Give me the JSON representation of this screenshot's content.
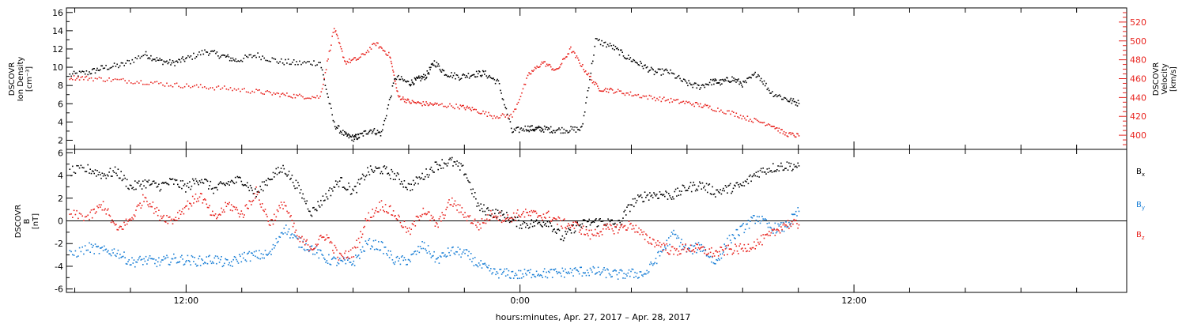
{
  "colors": {
    "axis": "#000000",
    "black_series": "#000000",
    "red_series": "#e8231e",
    "blue_series": "#1a7fd6"
  },
  "x_axis": {
    "title": "hours:minutes, Apr. 27, 2017 – Apr. 28, 2017",
    "tick_labels": [
      {
        "hour": 12,
        "label": "12:00"
      },
      {
        "hour": 24,
        "label": "0:00"
      },
      {
        "hour": 36,
        "label": "12:00"
      }
    ],
    "range_hours": [
      7.7,
      45.8
    ],
    "minor_tick_step_hours": 2
  },
  "chart_data": [
    {
      "type": "scatter",
      "panel": "plasma",
      "x_unit": "hours from Apr. 27, 2017 00:00",
      "left_axis": {
        "label_lines": [
          "DSCOVR",
          "Ion Density",
          "[cm⁻³]"
        ],
        "range": [
          1,
          16.5
        ],
        "tick_values": [
          2,
          4,
          6,
          8,
          10,
          12,
          14,
          16
        ],
        "tick_labels": [
          "2",
          "4",
          "6",
          "8",
          "10",
          "12",
          "14",
          "16"
        ]
      },
      "right_axis": {
        "label_lines": [
          "DSCOVR",
          "Velocity",
          "[km/s]"
        ],
        "range": [
          385,
          535
        ],
        "tick_values": [
          400,
          420,
          440,
          460,
          480,
          500,
          520
        ],
        "tick_labels": [
          "400",
          "420",
          "440",
          "460",
          "480",
          "500",
          "520"
        ]
      },
      "series": [
        {
          "color": "black",
          "axis": "left",
          "x": [
            7.8,
            8.5,
            9.0,
            9.7,
            10.5,
            11.0,
            11.5,
            12.0,
            12.7,
            13.3,
            13.8,
            14.5,
            15.3,
            16.0,
            16.8,
            17.3,
            17.7,
            18.0,
            18.2,
            18.6,
            19.0,
            19.5,
            20.0,
            20.3,
            20.6,
            20.9,
            21.3,
            21.8,
            22.3,
            22.7,
            23.2,
            23.7,
            24.2,
            24.5,
            24.8,
            25.2,
            25.7,
            26.2,
            26.7,
            27.3,
            27.8,
            28.3,
            28.8,
            29.3,
            29.9,
            30.4,
            30.9,
            31.2,
            31.6,
            32.0,
            32.5,
            33.0,
            33.6,
            34.0
          ],
          "y": [
            9.2,
            9.5,
            10.0,
            10.3,
            11.5,
            10.8,
            10.5,
            11.0,
            11.8,
            11.3,
            10.8,
            11.4,
            10.7,
            10.5,
            10.6,
            3.8,
            2.6,
            2.3,
            2.5,
            3.2,
            2.8,
            9.0,
            8.3,
            8.7,
            9.1,
            10.6,
            9.4,
            9.0,
            9.3,
            9.4,
            8.4,
            3.0,
            3.4,
            3.3,
            3.3,
            3.2,
            3.2,
            3.3,
            13.0,
            12.3,
            11.2,
            10.4,
            9.5,
            9.6,
            8.4,
            7.9,
            8.5,
            8.4,
            8.8,
            8.2,
            9.4,
            7.3,
            6.5,
            6.1
          ]
        },
        {
          "color": "red",
          "axis": "right",
          "x": [
            7.8,
            8.5,
            9.5,
            10.5,
            11.5,
            12.5,
            13.5,
            14.5,
            15.3,
            16.0,
            16.8,
            17.3,
            17.7,
            18.2,
            18.8,
            19.3,
            19.6,
            20.0,
            20.5,
            21.0,
            21.8,
            22.3,
            23.0,
            23.7,
            24.3,
            24.8,
            25.3,
            25.8,
            26.3,
            26.8,
            27.3,
            28.0,
            28.8,
            29.5,
            30.2,
            30.8,
            31.6,
            32.3,
            33.0,
            33.5,
            34.0
          ],
          "y": [
            462,
            461,
            459,
            457,
            454,
            452,
            450,
            447,
            444,
            442,
            441,
            514,
            478,
            482,
            498,
            485,
            442,
            436,
            434,
            433,
            431,
            428,
            421,
            421,
            465,
            478,
            469,
            492,
            470,
            450,
            448,
            444,
            440,
            437,
            434,
            430,
            424,
            417,
            412,
            402,
            400
          ]
        }
      ]
    },
    {
      "type": "scatter",
      "panel": "magnetic_field",
      "x_unit": "hours from Apr. 27, 2017 00:00",
      "left_axis": {
        "label_lines": [
          "DSCOVR",
          "B",
          "[nT]"
        ],
        "range": [
          -6.3,
          6.3
        ],
        "tick_values": [
          -6,
          -4,
          -2,
          0,
          2,
          4,
          6
        ],
        "tick_labels": [
          "-6",
          "-4",
          "-2",
          "0",
          "2",
          "4",
          "6"
        ]
      },
      "zero_line": true,
      "series": [
        {
          "name": "Bx",
          "color": "black",
          "x": [
            7.8,
            8.5,
            9.0,
            9.5,
            10.0,
            10.5,
            11.0,
            11.5,
            12.0,
            12.5,
            13.0,
            13.5,
            14.0,
            14.5,
            15.0,
            15.5,
            16.0,
            16.5,
            17.0,
            17.5,
            18.0,
            18.5,
            19.0,
            19.5,
            20.0,
            20.5,
            21.0,
            21.5,
            22.0,
            22.5,
            23.0,
            23.5,
            24.0,
            24.5,
            25.0,
            25.5,
            26.0,
            26.5,
            27.0,
            27.5,
            28.0,
            28.5,
            29.0,
            29.5,
            30.0,
            30.5,
            31.0,
            31.5,
            32.0,
            32.5,
            33.0,
            33.5,
            34.0
          ],
          "y": [
            4.4,
            4.6,
            4.1,
            4.4,
            3.0,
            3.4,
            3.1,
            3.5,
            3.0,
            3.8,
            2.8,
            3.4,
            3.7,
            2.4,
            3.9,
            4.7,
            3.0,
            0.8,
            2.2,
            3.6,
            2.6,
            4.4,
            4.6,
            4.0,
            3.0,
            4.0,
            5.0,
            5.3,
            4.4,
            1.2,
            0.8,
            0.4,
            -0.2,
            -0.2,
            0.0,
            -1.5,
            -0.4,
            -0.1,
            0.0,
            -0.3,
            1.6,
            2.3,
            2.4,
            2.3,
            3.0,
            3.2,
            2.6,
            2.9,
            3.2,
            4.3,
            4.7,
            4.9,
            4.9
          ]
        },
        {
          "name": "By",
          "color": "blue",
          "x": [
            7.8,
            8.5,
            9.0,
            9.5,
            10.0,
            10.5,
            11.0,
            11.5,
            12.0,
            12.5,
            13.0,
            13.5,
            14.0,
            14.5,
            15.0,
            15.5,
            16.0,
            16.5,
            17.0,
            17.5,
            18.0,
            18.5,
            19.0,
            19.5,
            20.0,
            20.5,
            21.0,
            21.5,
            22.0,
            22.5,
            23.0,
            23.5,
            24.0,
            24.5,
            25.0,
            25.5,
            26.0,
            26.5,
            27.0,
            27.5,
            28.0,
            28.5,
            29.0,
            29.5,
            30.0,
            30.5,
            31.0,
            31.5,
            32.0,
            32.5,
            33.0,
            33.5,
            34.0
          ],
          "y": [
            -3.0,
            -2.3,
            -2.6,
            -2.7,
            -3.6,
            -3.4,
            -3.6,
            -3.3,
            -3.4,
            -3.5,
            -3.3,
            -3.8,
            -3.1,
            -3.0,
            -2.9,
            -0.5,
            -1.8,
            -2.4,
            -3.3,
            -3.6,
            -3.6,
            -1.9,
            -2.2,
            -3.5,
            -3.4,
            -2.1,
            -3.4,
            -2.6,
            -2.8,
            -3.8,
            -4.5,
            -4.6,
            -4.7,
            -4.5,
            -4.6,
            -4.5,
            -4.4,
            -4.4,
            -4.5,
            -4.7,
            -4.6,
            -4.6,
            -2.9,
            -1.1,
            -2.6,
            -2.2,
            -3.7,
            -1.6,
            -0.6,
            0.4,
            -0.6,
            -0.5,
            0.9
          ]
        },
        {
          "name": "Bz",
          "color": "red",
          "x": [
            7.8,
            8.5,
            9.0,
            9.5,
            10.0,
            10.5,
            11.0,
            11.5,
            12.0,
            12.5,
            13.0,
            13.5,
            14.0,
            14.5,
            15.0,
            15.5,
            16.0,
            16.5,
            17.0,
            17.5,
            18.0,
            18.5,
            19.0,
            19.5,
            20.0,
            20.5,
            21.0,
            21.5,
            22.0,
            22.5,
            23.0,
            23.5,
            24.0,
            24.5,
            25.0,
            25.5,
            26.0,
            26.5,
            27.0,
            27.5,
            28.0,
            28.5,
            29.0,
            29.5,
            30.0,
            30.5,
            31.0,
            31.5,
            32.0,
            32.5,
            33.0,
            33.5,
            34.0
          ],
          "y": [
            0.6,
            0.4,
            1.5,
            -0.8,
            0.2,
            2.2,
            0.6,
            0.1,
            1.4,
            2.3,
            0.2,
            1.5,
            0.6,
            2.6,
            -0.2,
            1.7,
            -1.5,
            -2.3,
            -1.2,
            -3.2,
            -2.7,
            0.3,
            1.5,
            0.6,
            -1.0,
            1.1,
            -0.4,
            1.8,
            0.6,
            -0.4,
            0.7,
            0.2,
            0.7,
            0.6,
            0.5,
            -0.2,
            -0.4,
            -1.2,
            -0.7,
            -0.6,
            -0.3,
            -1.5,
            -2.0,
            -2.7,
            -2.3,
            -2.5,
            -2.8,
            -2.5,
            -2.4,
            -1.9,
            -1.2,
            -0.2,
            -0.3
          ]
        }
      ],
      "legend": [
        {
          "base": "B",
          "sub": "x",
          "color": "black"
        },
        {
          "base": "B",
          "sub": "y",
          "color": "blue"
        },
        {
          "base": "B",
          "sub": "z",
          "color": "red"
        }
      ]
    }
  ]
}
